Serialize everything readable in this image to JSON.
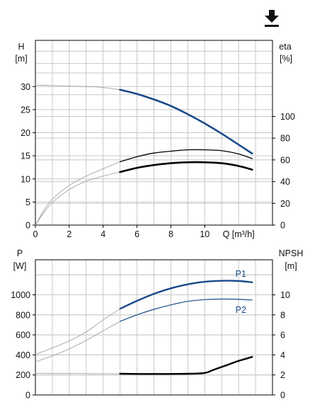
{
  "toolbar": {
    "download_icon": "download-icon"
  },
  "colors": {
    "blue": "#1a4a8a",
    "black": "#000000",
    "grey": "#999999",
    "grid": "#c8c8c8"
  },
  "chart_data": [
    {
      "type": "line",
      "name": "head-efficiency",
      "xlabel": "Q [m³/h]",
      "ylabel": "H",
      "ylabel_unit": "[m]",
      "y2label": "eta",
      "y2label_unit": "[%]",
      "xlim": [
        0,
        14
      ],
      "ylim": [
        0,
        40
      ],
      "y2lim": [
        0,
        170
      ],
      "xticks": [
        0,
        2,
        4,
        6,
        8,
        10
      ],
      "yticks": [
        0,
        5,
        10,
        15,
        20,
        25,
        30
      ],
      "y2ticks": [
        0,
        20,
        40,
        60,
        80,
        100
      ],
      "grid": true,
      "series": [
        {
          "color": "#999999",
          "width": 0.8,
          "axis": "y",
          "points": [
            [
              0,
              30.3
            ],
            [
              1,
              30.2
            ],
            [
              2,
              30.1
            ],
            [
              3,
              30.0
            ],
            [
              4,
              29.8
            ],
            [
              5,
              29.3
            ]
          ]
        },
        {
          "color": "#1a4a8a",
          "width": 2.6,
          "axis": "y",
          "points": [
            [
              5,
              29.3
            ],
            [
              6,
              28.4
            ],
            [
              7,
              27.2
            ],
            [
              8,
              25.8
            ],
            [
              9,
              24.0
            ],
            [
              10,
              22.0
            ],
            [
              11,
              19.8
            ],
            [
              12.8,
              15.5
            ]
          ]
        },
        {
          "color": "#999999",
          "width": 0.8,
          "axis": "y",
          "points": [
            [
              0,
              0
            ],
            [
              0.5,
              3.2
            ],
            [
              1,
              5.6
            ],
            [
              2,
              8.6
            ],
            [
              3,
              10.6
            ],
            [
              4,
              12.2
            ],
            [
              5,
              13.7
            ]
          ]
        },
        {
          "color": "#000000",
          "width": 1.3,
          "axis": "y",
          "points": [
            [
              5,
              13.7
            ],
            [
              6,
              14.8
            ],
            [
              7,
              15.6
            ],
            [
              8,
              16.0
            ],
            [
              9,
              16.3
            ],
            [
              10,
              16.3
            ],
            [
              11,
              16.1
            ],
            [
              12,
              15.4
            ],
            [
              12.8,
              14.4
            ]
          ]
        },
        {
          "color": "#999999",
          "width": 0.8,
          "axis": "y",
          "points": [
            [
              0,
              0
            ],
            [
              0.5,
              2.7
            ],
            [
              1,
              4.9
            ],
            [
              2,
              7.7
            ],
            [
              3,
              9.5
            ],
            [
              4,
              10.6
            ],
            [
              5,
              11.5
            ]
          ]
        },
        {
          "color": "#000000",
          "width": 2.6,
          "axis": "y",
          "points": [
            [
              5,
              11.5
            ],
            [
              6,
              12.4
            ],
            [
              7,
              13.0
            ],
            [
              8,
              13.4
            ],
            [
              9,
              13.6
            ],
            [
              10,
              13.6
            ],
            [
              11,
              13.4
            ],
            [
              12,
              12.8
            ],
            [
              12.8,
              12.0
            ]
          ]
        }
      ]
    },
    {
      "type": "line",
      "name": "power-npsh",
      "ylabel": "P",
      "ylabel_unit": "[W]",
      "y2label": "NPSH",
      "y2label_unit": "[m]",
      "xlim": [
        0,
        14
      ],
      "ylim": [
        0,
        1350
      ],
      "y2lim": [
        0,
        13.5
      ],
      "yticks": [
        0,
        200,
        400,
        600,
        800,
        1000
      ],
      "y2ticks": [
        0,
        2,
        4,
        6,
        8,
        10
      ],
      "grid": true,
      "series": [
        {
          "label": "P1",
          "color": "#1a4a8a",
          "width": 2.4,
          "axis": "y",
          "points": [
            [
              5,
              860
            ],
            [
              6,
              940
            ],
            [
              7,
              1010
            ],
            [
              8,
              1065
            ],
            [
              9,
              1105
            ],
            [
              10,
              1130
            ],
            [
              11,
              1140
            ],
            [
              12,
              1138
            ],
            [
              12.8,
              1125
            ]
          ]
        },
        {
          "color": "#999999",
          "width": 0.8,
          "axis": "y",
          "points": [
            [
              0,
              405
            ],
            [
              1,
              470
            ],
            [
              2,
              540
            ],
            [
              3,
              630
            ],
            [
              4,
              750
            ],
            [
              5,
              860
            ]
          ]
        },
        {
          "label": "P2",
          "color": "#1a4a8a",
          "width": 1.2,
          "axis": "y",
          "points": [
            [
              5,
              735
            ],
            [
              6,
              800
            ],
            [
              7,
              855
            ],
            [
              8,
              900
            ],
            [
              9,
              935
            ],
            [
              10,
              952
            ],
            [
              11,
              958
            ],
            [
              12,
              955
            ],
            [
              12.8,
              948
            ]
          ]
        },
        {
          "color": "#999999",
          "width": 0.8,
          "axis": "y",
          "points": [
            [
              0,
              330
            ],
            [
              1,
              390
            ],
            [
              2,
              460
            ],
            [
              3,
              545
            ],
            [
              4,
              640
            ],
            [
              5,
              735
            ]
          ]
        },
        {
          "color": "#999999",
          "width": 0.8,
          "axis": "y2",
          "points": [
            [
              0,
              2.15
            ],
            [
              2,
              2.14
            ],
            [
              4,
              2.13
            ],
            [
              5,
              2.12
            ]
          ]
        },
        {
          "color": "#000000",
          "width": 2.4,
          "axis": "y2",
          "points": [
            [
              5,
              2.12
            ],
            [
              6,
              2.1
            ],
            [
              7,
              2.1
            ],
            [
              8,
              2.1
            ],
            [
              9,
              2.12
            ],
            [
              10,
              2.2
            ],
            [
              10.5,
              2.5
            ],
            [
              11,
              2.8
            ],
            [
              11.5,
              3.1
            ],
            [
              12,
              3.4
            ],
            [
              12.8,
              3.8
            ]
          ]
        }
      ]
    }
  ]
}
